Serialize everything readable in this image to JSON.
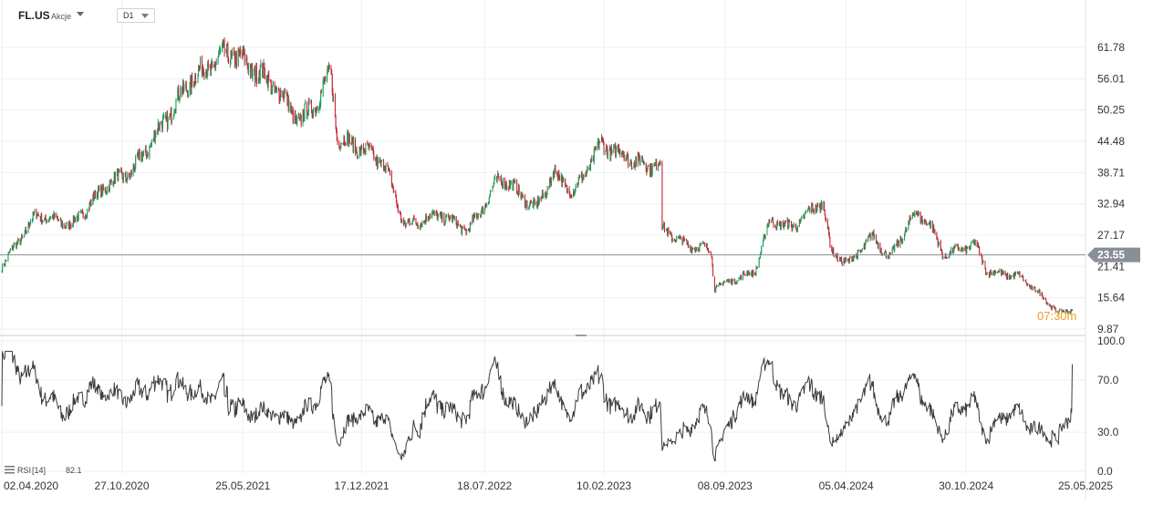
{
  "header": {
    "symbol": "FL.US",
    "asset_type": "Akcje",
    "timeframe": "D1"
  },
  "colors": {
    "up": "#1a9e5c",
    "down": "#c8273b",
    "price_line": "#8a8f96",
    "price_badge": "#8a8f96",
    "rsi_line": "#3c3c3c",
    "grid": "#eef0f2",
    "countdown": "#f0a020"
  },
  "chart_data": [
    {
      "type": "candlestick",
      "panel": "price",
      "y_ticks": [
        "61.78",
        "56.01",
        "50.25",
        "44.48",
        "38.71",
        "32.94",
        "27.17",
        "21.41",
        "15.64",
        "9.87"
      ],
      "ylim": [
        9.87,
        61.78
      ],
      "current_price": "23.55",
      "countdown": "07:30m",
      "x_ticks": [
        "02.04.2020",
        "27.10.2020",
        "25.05.2021",
        "17.12.2021",
        "18.07.2022",
        "10.02.2023",
        "08.09.2023",
        "05.04.2024",
        "30.10.2024",
        "25.05.2025"
      ],
      "x_range": [
        "2020-04-02",
        "2025-05-25"
      ],
      "key_points": [
        [
          "2020-04-02",
          21.5
        ],
        [
          "2020-06-01",
          31.0
        ],
        [
          "2020-08-01",
          29.0
        ],
        [
          "2020-10-01",
          36.5
        ],
        [
          "2020-11-15",
          39.0
        ],
        [
          "2021-01-05",
          47.5
        ],
        [
          "2021-02-25",
          56.0
        ],
        [
          "2021-04-01",
          58.5
        ],
        [
          "2021-05-01",
          61.0
        ],
        [
          "2021-06-10",
          58.0
        ],
        [
          "2021-07-20",
          54.5
        ],
        [
          "2021-09-01",
          48.0
        ],
        [
          "2021-10-01",
          52.0
        ],
        [
          "2021-10-25",
          57.0
        ],
        [
          "2021-11-05",
          45.0
        ],
        [
          "2021-12-10",
          43.5
        ],
        [
          "2022-01-25",
          40.5
        ],
        [
          "2022-03-01",
          29.0
        ],
        [
          "2022-05-01",
          31.0
        ],
        [
          "2022-06-20",
          28.0
        ],
        [
          "2022-08-15",
          38.0
        ],
        [
          "2022-10-15",
          32.0
        ],
        [
          "2022-11-15",
          38.5
        ],
        [
          "2022-12-20",
          35.0
        ],
        [
          "2023-02-05",
          44.0
        ],
        [
          "2023-03-15",
          42.0
        ],
        [
          "2023-04-25",
          40.0
        ],
        [
          "2023-05-20",
          40.5
        ],
        [
          "2023-05-22",
          28.5
        ],
        [
          "2023-06-30",
          25.5
        ],
        [
          "2023-08-15",
          24.5
        ],
        [
          "2023-08-20",
          17.5
        ],
        [
          "2023-10-30",
          20.5
        ],
        [
          "2023-11-25",
          30.0
        ],
        [
          "2024-01-01",
          28.5
        ],
        [
          "2024-02-25",
          33.5
        ],
        [
          "2024-03-10",
          24.0
        ],
        [
          "2024-04-10",
          22.0
        ],
        [
          "2024-05-20",
          27.0
        ],
        [
          "2024-06-20",
          23.0
        ],
        [
          "2024-08-01",
          31.0
        ],
        [
          "2024-08-25",
          30.0
        ],
        [
          "2024-09-20",
          23.5
        ],
        [
          "2024-11-15",
          25.5
        ],
        [
          "2024-12-05",
          20.5
        ],
        [
          "2025-02-01",
          19.5
        ],
        [
          "2025-03-15",
          15.5
        ],
        [
          "2025-04-08",
          12.8
        ],
        [
          "2025-05-02",
          13.5
        ]
      ]
    },
    {
      "type": "line",
      "panel": "rsi",
      "indicator": "RSI",
      "period": "[14]",
      "value": "82.1",
      "y_ticks": [
        "100.0",
        "70.0",
        "30.0",
        "0.0"
      ],
      "ylim": [
        0,
        100
      ]
    }
  ]
}
